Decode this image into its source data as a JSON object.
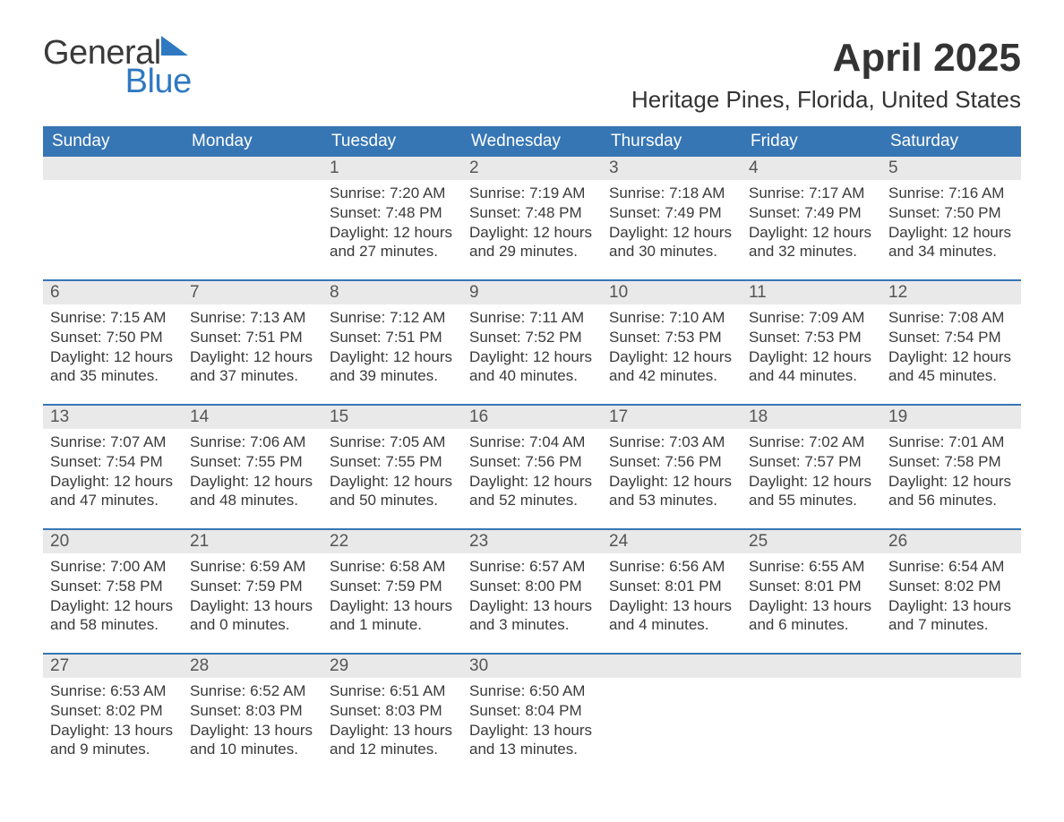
{
  "logo": {
    "line1": "General",
    "line2": "Blue"
  },
  "title": "April 2025",
  "subtitle": "Heritage Pines, Florida, United States",
  "dow": [
    "Sunday",
    "Monday",
    "Tuesday",
    "Wednesday",
    "Thursday",
    "Friday",
    "Saturday"
  ],
  "colors": {
    "header_bg": "#3776b5",
    "header_text": "#ffffff",
    "daynum_bg": "#e9e9e9",
    "week_border": "#3776b5",
    "logo_blue": "#2f79c2",
    "text": "#3a3a3a"
  },
  "weeks": [
    [
      {
        "day": "",
        "sunrise": "",
        "sunset": "",
        "daylight1": "",
        "daylight2": ""
      },
      {
        "day": "",
        "sunrise": "",
        "sunset": "",
        "daylight1": "",
        "daylight2": ""
      },
      {
        "day": "1",
        "sunrise": "Sunrise: 7:20 AM",
        "sunset": "Sunset: 7:48 PM",
        "daylight1": "Daylight: 12 hours",
        "daylight2": "and 27 minutes."
      },
      {
        "day": "2",
        "sunrise": "Sunrise: 7:19 AM",
        "sunset": "Sunset: 7:48 PM",
        "daylight1": "Daylight: 12 hours",
        "daylight2": "and 29 minutes."
      },
      {
        "day": "3",
        "sunrise": "Sunrise: 7:18 AM",
        "sunset": "Sunset: 7:49 PM",
        "daylight1": "Daylight: 12 hours",
        "daylight2": "and 30 minutes."
      },
      {
        "day": "4",
        "sunrise": "Sunrise: 7:17 AM",
        "sunset": "Sunset: 7:49 PM",
        "daylight1": "Daylight: 12 hours",
        "daylight2": "and 32 minutes."
      },
      {
        "day": "5",
        "sunrise": "Sunrise: 7:16 AM",
        "sunset": "Sunset: 7:50 PM",
        "daylight1": "Daylight: 12 hours",
        "daylight2": "and 34 minutes."
      }
    ],
    [
      {
        "day": "6",
        "sunrise": "Sunrise: 7:15 AM",
        "sunset": "Sunset: 7:50 PM",
        "daylight1": "Daylight: 12 hours",
        "daylight2": "and 35 minutes."
      },
      {
        "day": "7",
        "sunrise": "Sunrise: 7:13 AM",
        "sunset": "Sunset: 7:51 PM",
        "daylight1": "Daylight: 12 hours",
        "daylight2": "and 37 minutes."
      },
      {
        "day": "8",
        "sunrise": "Sunrise: 7:12 AM",
        "sunset": "Sunset: 7:51 PM",
        "daylight1": "Daylight: 12 hours",
        "daylight2": "and 39 minutes."
      },
      {
        "day": "9",
        "sunrise": "Sunrise: 7:11 AM",
        "sunset": "Sunset: 7:52 PM",
        "daylight1": "Daylight: 12 hours",
        "daylight2": "and 40 minutes."
      },
      {
        "day": "10",
        "sunrise": "Sunrise: 7:10 AM",
        "sunset": "Sunset: 7:53 PM",
        "daylight1": "Daylight: 12 hours",
        "daylight2": "and 42 minutes."
      },
      {
        "day": "11",
        "sunrise": "Sunrise: 7:09 AM",
        "sunset": "Sunset: 7:53 PM",
        "daylight1": "Daylight: 12 hours",
        "daylight2": "and 44 minutes."
      },
      {
        "day": "12",
        "sunrise": "Sunrise: 7:08 AM",
        "sunset": "Sunset: 7:54 PM",
        "daylight1": "Daylight: 12 hours",
        "daylight2": "and 45 minutes."
      }
    ],
    [
      {
        "day": "13",
        "sunrise": "Sunrise: 7:07 AM",
        "sunset": "Sunset: 7:54 PM",
        "daylight1": "Daylight: 12 hours",
        "daylight2": "and 47 minutes."
      },
      {
        "day": "14",
        "sunrise": "Sunrise: 7:06 AM",
        "sunset": "Sunset: 7:55 PM",
        "daylight1": "Daylight: 12 hours",
        "daylight2": "and 48 minutes."
      },
      {
        "day": "15",
        "sunrise": "Sunrise: 7:05 AM",
        "sunset": "Sunset: 7:55 PM",
        "daylight1": "Daylight: 12 hours",
        "daylight2": "and 50 minutes."
      },
      {
        "day": "16",
        "sunrise": "Sunrise: 7:04 AM",
        "sunset": "Sunset: 7:56 PM",
        "daylight1": "Daylight: 12 hours",
        "daylight2": "and 52 minutes."
      },
      {
        "day": "17",
        "sunrise": "Sunrise: 7:03 AM",
        "sunset": "Sunset: 7:56 PM",
        "daylight1": "Daylight: 12 hours",
        "daylight2": "and 53 minutes."
      },
      {
        "day": "18",
        "sunrise": "Sunrise: 7:02 AM",
        "sunset": "Sunset: 7:57 PM",
        "daylight1": "Daylight: 12 hours",
        "daylight2": "and 55 minutes."
      },
      {
        "day": "19",
        "sunrise": "Sunrise: 7:01 AM",
        "sunset": "Sunset: 7:58 PM",
        "daylight1": "Daylight: 12 hours",
        "daylight2": "and 56 minutes."
      }
    ],
    [
      {
        "day": "20",
        "sunrise": "Sunrise: 7:00 AM",
        "sunset": "Sunset: 7:58 PM",
        "daylight1": "Daylight: 12 hours",
        "daylight2": "and 58 minutes."
      },
      {
        "day": "21",
        "sunrise": "Sunrise: 6:59 AM",
        "sunset": "Sunset: 7:59 PM",
        "daylight1": "Daylight: 13 hours",
        "daylight2": "and 0 minutes."
      },
      {
        "day": "22",
        "sunrise": "Sunrise: 6:58 AM",
        "sunset": "Sunset: 7:59 PM",
        "daylight1": "Daylight: 13 hours",
        "daylight2": "and 1 minute."
      },
      {
        "day": "23",
        "sunrise": "Sunrise: 6:57 AM",
        "sunset": "Sunset: 8:00 PM",
        "daylight1": "Daylight: 13 hours",
        "daylight2": "and 3 minutes."
      },
      {
        "day": "24",
        "sunrise": "Sunrise: 6:56 AM",
        "sunset": "Sunset: 8:01 PM",
        "daylight1": "Daylight: 13 hours",
        "daylight2": "and 4 minutes."
      },
      {
        "day": "25",
        "sunrise": "Sunrise: 6:55 AM",
        "sunset": "Sunset: 8:01 PM",
        "daylight1": "Daylight: 13 hours",
        "daylight2": "and 6 minutes."
      },
      {
        "day": "26",
        "sunrise": "Sunrise: 6:54 AM",
        "sunset": "Sunset: 8:02 PM",
        "daylight1": "Daylight: 13 hours",
        "daylight2": "and 7 minutes."
      }
    ],
    [
      {
        "day": "27",
        "sunrise": "Sunrise: 6:53 AM",
        "sunset": "Sunset: 8:02 PM",
        "daylight1": "Daylight: 13 hours",
        "daylight2": "and 9 minutes."
      },
      {
        "day": "28",
        "sunrise": "Sunrise: 6:52 AM",
        "sunset": "Sunset: 8:03 PM",
        "daylight1": "Daylight: 13 hours",
        "daylight2": "and 10 minutes."
      },
      {
        "day": "29",
        "sunrise": "Sunrise: 6:51 AM",
        "sunset": "Sunset: 8:03 PM",
        "daylight1": "Daylight: 13 hours",
        "daylight2": "and 12 minutes."
      },
      {
        "day": "30",
        "sunrise": "Sunrise: 6:50 AM",
        "sunset": "Sunset: 8:04 PM",
        "daylight1": "Daylight: 13 hours",
        "daylight2": "and 13 minutes."
      },
      {
        "day": "",
        "sunrise": "",
        "sunset": "",
        "daylight1": "",
        "daylight2": ""
      },
      {
        "day": "",
        "sunrise": "",
        "sunset": "",
        "daylight1": "",
        "daylight2": ""
      },
      {
        "day": "",
        "sunrise": "",
        "sunset": "",
        "daylight1": "",
        "daylight2": ""
      }
    ]
  ]
}
